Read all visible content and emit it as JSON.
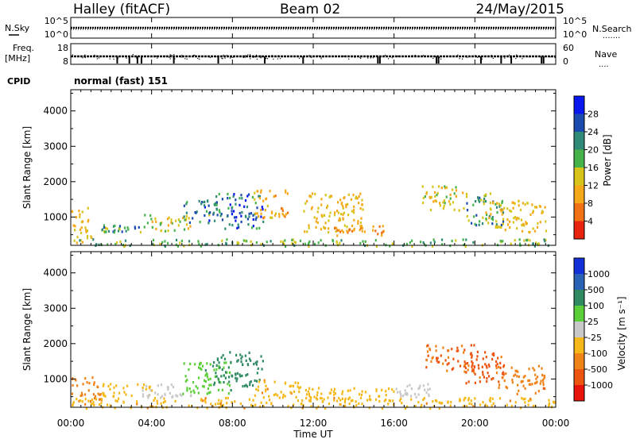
{
  "header": {
    "station": "Halley (fitACF)",
    "beam": "Beam 02",
    "date": "24/May/2015"
  },
  "nsky_panel": {
    "left_label": "N.Sky",
    "right_label": "N.Search",
    "right_legend_dots": ".......",
    "left_ticks": [
      "10^5",
      "10^0"
    ],
    "right_ticks": [
      "10^5",
      "10^0"
    ]
  },
  "freq_panel": {
    "left_label_top": "Freq.",
    "left_label_unit": "[MHz]",
    "right_label": "Nave",
    "right_legend_dots": "....",
    "left_ticks": [
      "18",
      "8"
    ],
    "right_ticks": [
      "60",
      "0"
    ]
  },
  "cpid": {
    "label": "CPID",
    "value": "normal (fast) 151"
  },
  "x_axis": {
    "label": "Time UT",
    "ticks": [
      "00:00",
      "04:00",
      "08:00",
      "12:00",
      "16:00",
      "20:00",
      "00:00"
    ]
  },
  "chart_data": [
    {
      "type": "heatmap",
      "name": "power",
      "ylabel": "Slant Range [km]",
      "yticks": [
        "1000",
        "2000",
        "3000",
        "4000"
      ],
      "ylim": [
        200,
        4600
      ],
      "xlim": [
        "00:00",
        "24:00"
      ],
      "colorbar": {
        "label": "Power [dB]",
        "ticks": [
          "4",
          "8",
          "12",
          "16",
          "20",
          "24",
          "28"
        ],
        "colors": [
          "#0a18f0",
          "#1c4bb0",
          "#2f8a77",
          "#46b34a",
          "#d7c41b",
          "#f5a818",
          "#f07214",
          "#e9240e"
        ]
      },
      "clusters": [
        {
          "t": [
            0.0,
            1.0
          ],
          "r": [
            300,
            1300
          ],
          "v": 12
        },
        {
          "t": [
            1.5,
            3.5
          ],
          "r": [
            600,
            800
          ],
          "v": 20
        },
        {
          "t": [
            3.5,
            6.0
          ],
          "r": [
            600,
            1100
          ],
          "v": 14
        },
        {
          "t": [
            5.5,
            7.2
          ],
          "r": [
            800,
            1500
          ],
          "v": 22
        },
        {
          "t": [
            7.0,
            9.5
          ],
          "r": [
            700,
            1700
          ],
          "v": 24
        },
        {
          "t": [
            9.0,
            10.7
          ],
          "r": [
            1000,
            1800
          ],
          "v": 10
        },
        {
          "t": [
            11.5,
            14.5
          ],
          "r": [
            600,
            1700
          ],
          "v": 12
        },
        {
          "t": [
            13.0,
            15.5
          ],
          "r": [
            500,
            800
          ],
          "v": 8
        },
        {
          "t": [
            17.3,
            19.5
          ],
          "r": [
            1200,
            1900
          ],
          "v": 14
        },
        {
          "t": [
            19.5,
            21.5
          ],
          "r": [
            800,
            1700
          ],
          "v": 20
        },
        {
          "t": [
            20.5,
            23.5
          ],
          "r": [
            600,
            1500
          ],
          "v": 12
        },
        {
          "t": [
            0.0,
            24.0
          ],
          "r": [
            200,
            400
          ],
          "v": 18
        }
      ]
    },
    {
      "type": "heatmap",
      "name": "velocity",
      "ylabel": "Slant Range [km]",
      "yticks": [
        "1000",
        "2000",
        "3000",
        "4000"
      ],
      "ylim": [
        200,
        4600
      ],
      "xlim": [
        "00:00",
        "24:00"
      ],
      "colorbar": {
        "label": "Velocity [m s⁻¹]",
        "ticks": [
          "1000",
          "500",
          "100",
          "25",
          "-25",
          "-100",
          "-500",
          "-1000"
        ],
        "colors": [
          "#1430d8",
          "#2a62b5",
          "#2f8a62",
          "#5bcf3a",
          "#c8c8c8",
          "#f5b818",
          "#f08318",
          "#ec5410",
          "#e8140c"
        ]
      },
      "clusters": [
        {
          "t": [
            0.0,
            1.5
          ],
          "r": [
            400,
            1100
          ],
          "v": -300
        },
        {
          "t": [
            1.5,
            4.0
          ],
          "r": [
            500,
            900
          ],
          "v": -50
        },
        {
          "t": [
            3.5,
            6.0
          ],
          "r": [
            500,
            900
          ],
          "v": 0
        },
        {
          "t": [
            5.5,
            8.0
          ],
          "r": [
            600,
            1500
          ],
          "v": 80
        },
        {
          "t": [
            7.0,
            9.5
          ],
          "r": [
            800,
            1800
          ],
          "v": 150
        },
        {
          "t": [
            9.0,
            11.5
          ],
          "r": [
            500,
            1000
          ],
          "v": -80
        },
        {
          "t": [
            11.5,
            16.0
          ],
          "r": [
            400,
            800
          ],
          "v": -40
        },
        {
          "t": [
            16.0,
            18.0
          ],
          "r": [
            500,
            900
          ],
          "v": 0
        },
        {
          "t": [
            17.5,
            20.0
          ],
          "r": [
            1200,
            2000
          ],
          "v": -500
        },
        {
          "t": [
            19.5,
            21.5
          ],
          "r": [
            900,
            1800
          ],
          "v": -700
        },
        {
          "t": [
            21.0,
            23.5
          ],
          "r": [
            600,
            1400
          ],
          "v": -400
        },
        {
          "t": [
            0.0,
            24.0
          ],
          "r": [
            200,
            500
          ],
          "v": -80
        }
      ]
    }
  ]
}
